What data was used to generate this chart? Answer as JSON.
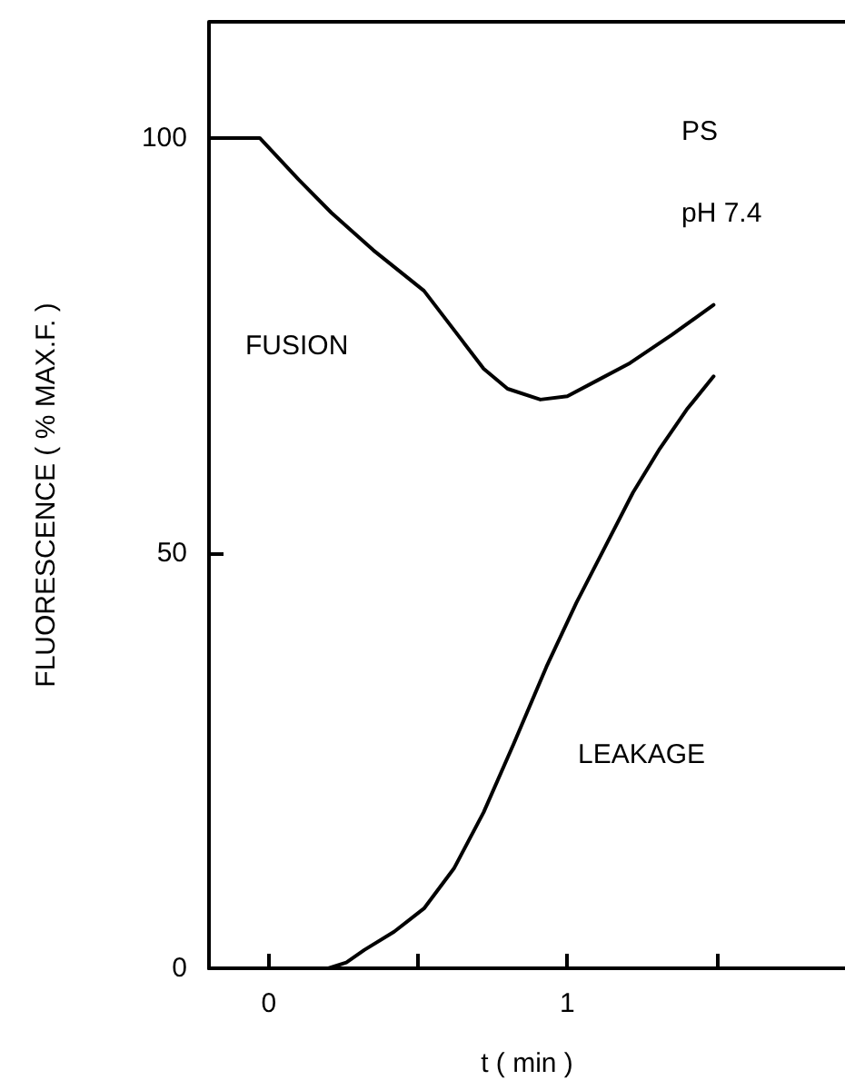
{
  "chart_data": {
    "type": "line",
    "xlabel": "t ( min )",
    "ylabel": "FLUORESCENCE ( % MAX.F. )",
    "xlim": [
      -0.2,
      1.93
    ],
    "ylim": [
      0,
      114
    ],
    "xticks": [
      0,
      {
        "value": 0.5,
        "label": null
      },
      1,
      {
        "value": 1.5,
        "label": null
      }
    ],
    "yticks": [
      0,
      50,
      100
    ],
    "grid": false,
    "marker": "none",
    "line_style": "solid",
    "series": [
      {
        "color": "#000000",
        "x": [
          -0.2,
          -0.03,
          0.1,
          0.21,
          0.35,
          0.52,
          0.65,
          0.72,
          0.8,
          0.91,
          1.0,
          1.1,
          1.21,
          1.35,
          1.49
        ],
        "values": [
          100,
          100,
          95,
          91,
          86.5,
          81.6,
          75.5,
          72.2,
          69.8,
          68.5,
          68.9,
          70.8,
          72.9,
          76.3,
          79.9
        ]
      },
      {
        "color": "#000000",
        "x": [
          -0.2,
          0.2,
          0.26,
          0.32,
          0.42,
          0.52,
          0.62,
          0.72,
          0.82,
          0.93,
          1.03,
          1.13,
          1.22,
          1.31,
          1.4,
          1.49
        ],
        "values": [
          0,
          0,
          0.7,
          2.2,
          4.4,
          7.2,
          12,
          18.8,
          27,
          36.3,
          44,
          51,
          57.3,
          62.6,
          67.3,
          71.3
        ]
      }
    ],
    "annotations": [
      "FUSION",
      "LEAKAGE",
      "PS",
      "pH 7.4"
    ]
  }
}
